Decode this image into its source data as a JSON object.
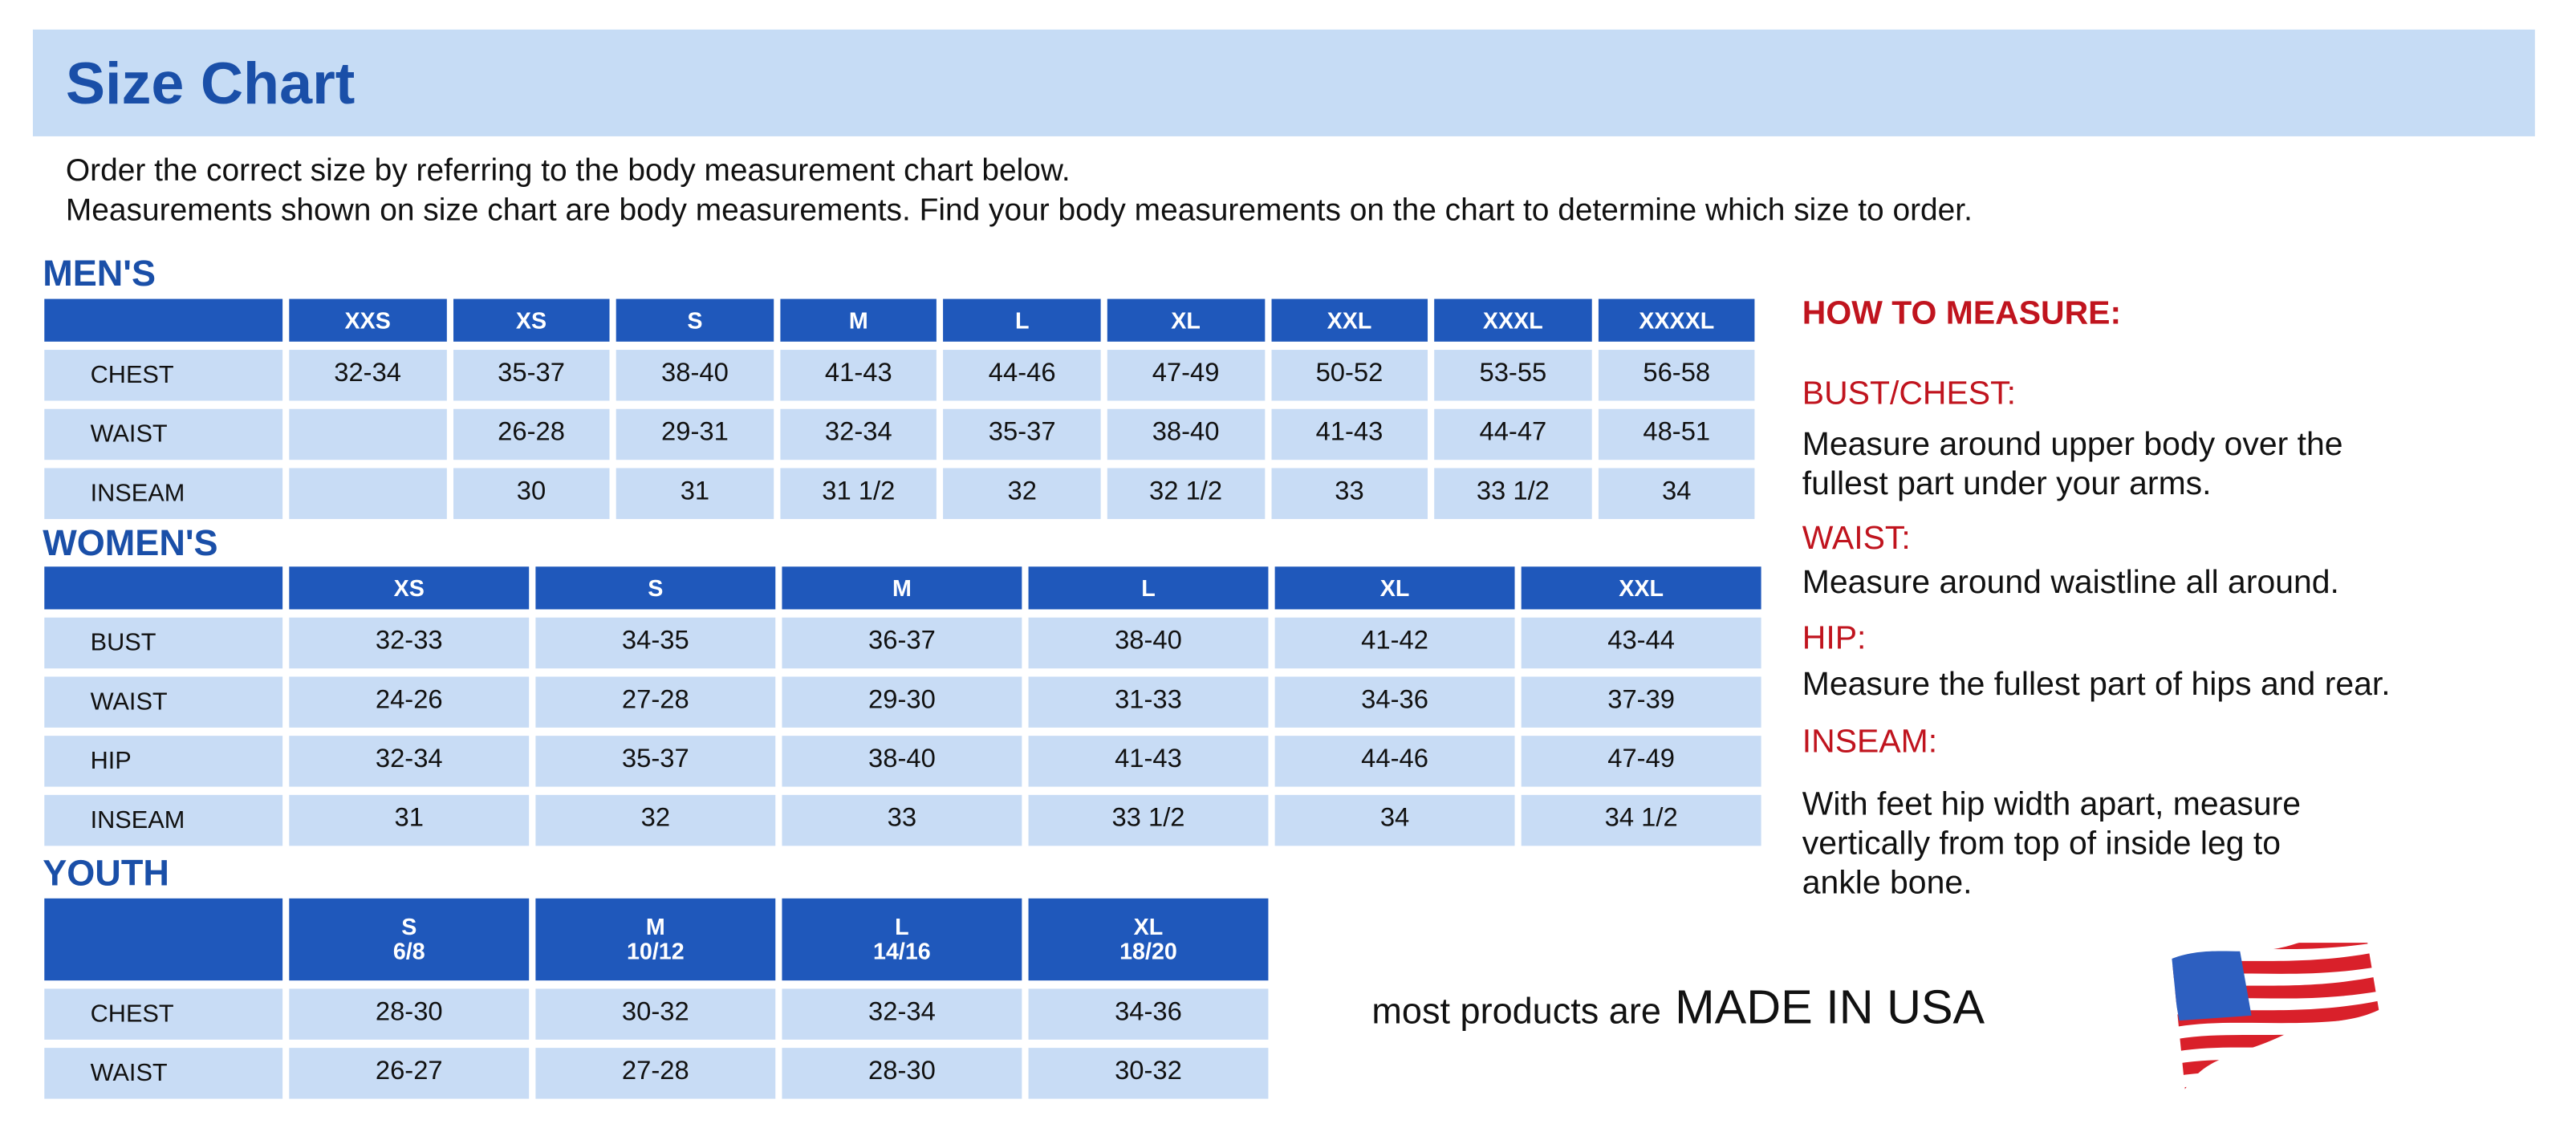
{
  "title": "Size Chart",
  "intro": [
    "Order the correct size by referring to the body measurement chart below.",
    "Measurements shown on size chart are body measurements.  Find your body measurements on the chart to determine which size to order."
  ],
  "mens": {
    "label": "MEN'S",
    "sizes": [
      "XXS",
      "XS",
      "S",
      "M",
      "L",
      "XL",
      "XXL",
      "XXXL",
      "XXXXL"
    ],
    "rows": [
      {
        "name": "CHEST",
        "values": [
          "32-34",
          "35-37",
          "38-40",
          "41-43",
          "44-46",
          "47-49",
          "50-52",
          "53-55",
          "56-58"
        ]
      },
      {
        "name": "WAIST",
        "values": [
          "",
          "26-28",
          "29-31",
          "32-34",
          "35-37",
          "38-40",
          "41-43",
          "44-47",
          "48-51"
        ]
      },
      {
        "name": "INSEAM",
        "values": [
          "",
          "30",
          "31",
          "31 1/2",
          "32",
          "32 1/2",
          "33",
          "33 1/2",
          "34"
        ]
      }
    ]
  },
  "womens": {
    "label": "WOMEN'S",
    "sizes": [
      "XS",
      "S",
      "M",
      "L",
      "XL",
      "XXL"
    ],
    "rows": [
      {
        "name": "BUST",
        "values": [
          "32-33",
          "34-35",
          "36-37",
          "38-40",
          "41-42",
          "43-44"
        ]
      },
      {
        "name": "WAIST",
        "values": [
          "24-26",
          "27-28",
          "29-30",
          "31-33",
          "34-36",
          "37-39"
        ]
      },
      {
        "name": "HIP",
        "values": [
          "32-34",
          "35-37",
          "38-40",
          "41-43",
          "44-46",
          "47-49"
        ]
      },
      {
        "name": "INSEAM",
        "values": [
          "31",
          "32",
          "33",
          "33 1/2",
          "34",
          "34 1/2"
        ]
      }
    ]
  },
  "youth": {
    "label": "YOUTH",
    "sizes": [
      {
        "size": "S",
        "range": "6/8"
      },
      {
        "size": "M",
        "range": "10/12"
      },
      {
        "size": "L",
        "range": "14/16"
      },
      {
        "size": "XL",
        "range": "18/20"
      }
    ],
    "rows": [
      {
        "name": "CHEST",
        "values": [
          "28-30",
          "30-32",
          "32-34",
          "34-36"
        ]
      },
      {
        "name": "WAIST",
        "values": [
          "26-27",
          "27-28",
          "28-30",
          "30-32"
        ]
      }
    ]
  },
  "how_to_measure": {
    "heading": "HOW TO MEASURE:",
    "items": [
      {
        "term": "BUST/CHEST:",
        "lines": [
          "Measure around upper body over the",
          "fullest part under your arms."
        ]
      },
      {
        "term": "WAIST:",
        "lines": [
          "Measure around waistline all around."
        ]
      },
      {
        "term": "HIP:",
        "lines": [
          "Measure the fullest part of hips and rear."
        ]
      },
      {
        "term": "INSEAM:",
        "lines": [
          "With feet hip width apart, measure",
          "vertically from top of inside leg to",
          "ankle bone."
        ]
      }
    ]
  },
  "footer": {
    "prefix": "most products are",
    "emphasis": "MADE IN USA",
    "flag_icon": "us-flag-icon"
  },
  "colors": {
    "title_blue": "#1a4fa8",
    "header_blue": "#1f58bb",
    "cell_blue": "#c8dcf5",
    "accent_red": "#c0141e"
  }
}
